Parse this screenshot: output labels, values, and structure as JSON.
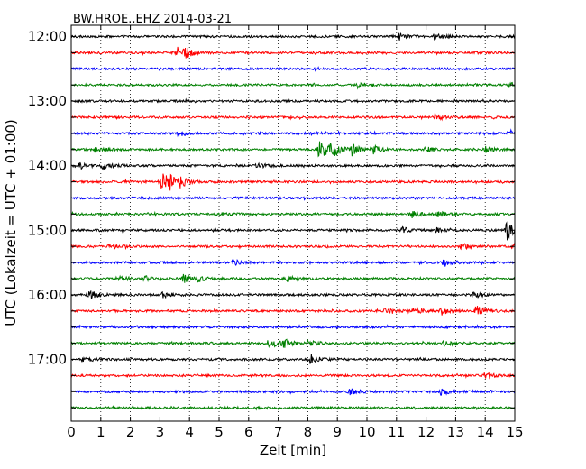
{
  "chart_data": {
    "type": "line",
    "title": "BW.HROE..EHZ 2014-03-21",
    "xlabel": "Zeit  [min]",
    "ylabel": "UTC (Lokalzeit = UTC + 01:00)",
    "xlim": [
      0,
      15
    ],
    "x_ticks": [
      0,
      1,
      2,
      3,
      4,
      5,
      6,
      7,
      8,
      9,
      10,
      11,
      12,
      13,
      14,
      15
    ],
    "x_tick_labels": [
      "0",
      "1",
      "2",
      "3",
      "4",
      "5",
      "6",
      "7",
      "8",
      "9",
      "10",
      "11",
      "12",
      "13",
      "14",
      "15"
    ],
    "grid": "vertical-dotted",
    "trace_interval_minutes": 15,
    "colors": [
      "#000000",
      "#ff0000",
      "#0000ff",
      "#008000"
    ],
    "y_tick_labels": [
      "12:00",
      "13:00",
      "14:00",
      "15:00",
      "16:00",
      "17:00"
    ],
    "traces": [
      {
        "start": "12:00",
        "color": "#000000",
        "bursts": [
          [
            11.1,
            0.3
          ],
          [
            12.3,
            0.25
          ]
        ]
      },
      {
        "start": "12:15",
        "color": "#ff0000",
        "bursts": [
          [
            3.6,
            0.5
          ],
          [
            3.9,
            0.3
          ]
        ]
      },
      {
        "start": "12:30",
        "color": "#0000ff",
        "bursts": []
      },
      {
        "start": "12:45",
        "color": "#008000",
        "bursts": [
          [
            9.7,
            0.25
          ],
          [
            14.8,
            0.25
          ]
        ]
      },
      {
        "start": "13:00",
        "color": "#000000",
        "bursts": []
      },
      {
        "start": "13:15",
        "color": "#ff0000",
        "bursts": [
          [
            12.3,
            0.3
          ]
        ]
      },
      {
        "start": "13:30",
        "color": "#0000ff",
        "bursts": [
          [
            3.6,
            0.25
          ],
          [
            14.8,
            0.3
          ]
        ]
      },
      {
        "start": "13:45",
        "color": "#008000",
        "bursts": [
          [
            8.4,
            1.0
          ],
          [
            8.8,
            0.7
          ],
          [
            9.5,
            0.5
          ],
          [
            10.2,
            0.35
          ],
          [
            0.8,
            0.3
          ],
          [
            12.0,
            0.25
          ],
          [
            14.0,
            0.25
          ]
        ]
      },
      {
        "start": "14:00",
        "color": "#000000",
        "bursts": [
          [
            1.1,
            0.3
          ],
          [
            0.3,
            0.25
          ],
          [
            6.3,
            0.25
          ]
        ]
      },
      {
        "start": "14:15",
        "color": "#ff0000",
        "bursts": [
          [
            3.05,
            1.0
          ],
          [
            3.3,
            0.5
          ],
          [
            3.7,
            0.3
          ]
        ]
      },
      {
        "start": "14:30",
        "color": "#0000ff",
        "bursts": []
      },
      {
        "start": "14:45",
        "color": "#008000",
        "bursts": [
          [
            11.5,
            0.35
          ],
          [
            12.4,
            0.3
          ],
          [
            5.0,
            0.2
          ]
        ]
      },
      {
        "start": "15:00",
        "color": "#000000",
        "bursts": [
          [
            14.75,
            1.0
          ],
          [
            11.2,
            0.25
          ],
          [
            12.3,
            0.25
          ]
        ]
      },
      {
        "start": "15:15",
        "color": "#ff0000",
        "bursts": [
          [
            14.95,
            0.4
          ],
          [
            1.3,
            0.25
          ],
          [
            13.2,
            0.25
          ]
        ]
      },
      {
        "start": "15:30",
        "color": "#0000ff",
        "bursts": [
          [
            5.5,
            0.3
          ],
          [
            12.6,
            0.25
          ]
        ]
      },
      {
        "start": "15:45",
        "color": "#008000",
        "bursts": [
          [
            1.6,
            0.3
          ],
          [
            2.5,
            0.3
          ],
          [
            3.8,
            0.35
          ],
          [
            4.3,
            0.3
          ],
          [
            7.3,
            0.25
          ]
        ]
      },
      {
        "start": "16:00",
        "color": "#000000",
        "bursts": [
          [
            0.6,
            0.45
          ],
          [
            3.1,
            0.3
          ],
          [
            13.6,
            0.25
          ]
        ]
      },
      {
        "start": "16:15",
        "color": "#ff0000",
        "bursts": [
          [
            11.6,
            0.35
          ],
          [
            12.5,
            0.35
          ],
          [
            13.7,
            0.45
          ],
          [
            10.6,
            0.25
          ]
        ]
      },
      {
        "start": "16:30",
        "color": "#0000ff",
        "bursts": []
      },
      {
        "start": "16:45",
        "color": "#008000",
        "bursts": [
          [
            6.7,
            0.45
          ],
          [
            7.2,
            0.35
          ],
          [
            8.0,
            0.25
          ],
          [
            12.6,
            0.25
          ]
        ]
      },
      {
        "start": "17:00",
        "color": "#000000",
        "bursts": [
          [
            8.1,
            0.45
          ],
          [
            0.4,
            0.25
          ]
        ]
      },
      {
        "start": "17:15",
        "color": "#ff0000",
        "bursts": [
          [
            14.0,
            0.25
          ]
        ]
      },
      {
        "start": "17:30",
        "color": "#0000ff",
        "bursts": [
          [
            9.4,
            0.25
          ],
          [
            12.5,
            0.25
          ]
        ]
      },
      {
        "start": "17:45",
        "color": "#008000",
        "bursts": []
      }
    ]
  }
}
